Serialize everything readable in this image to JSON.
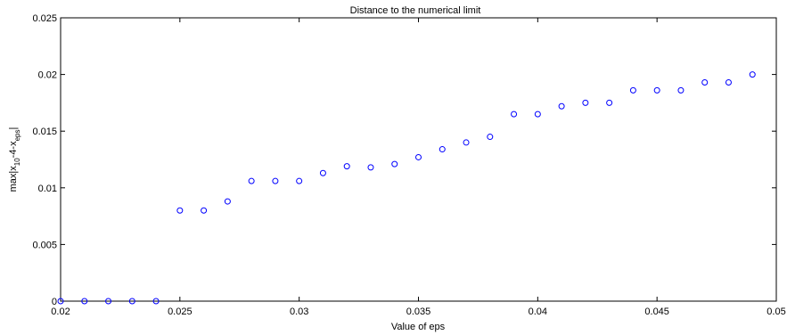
{
  "chart_data": {
    "type": "scatter",
    "title": "Distance to the numerical limit",
    "xlabel": "Value of eps",
    "ylabel": {
      "prefix": "max|x",
      "sub1": "10",
      "mid": "-4",
      "sep": "-x",
      "sub2": "eps",
      "suffix": "|"
    },
    "xlim": [
      0.02,
      0.05
    ],
    "ylim": [
      0,
      0.025
    ],
    "xticks": [
      0.02,
      0.025,
      0.03,
      0.035,
      0.04,
      0.045,
      0.05
    ],
    "xtick_labels": [
      "0.02",
      "0.025",
      "0.03",
      "0.035",
      "0.04",
      "0.045",
      "0.05"
    ],
    "yticks": [
      0,
      0.005,
      0.01,
      0.015,
      0.02,
      0.025
    ],
    "ytick_labels": [
      "0",
      "0.005",
      "0.01",
      "0.015",
      "0.02",
      "0.025"
    ],
    "grid": false,
    "marker_color": "#0000ff",
    "marker": "circle-open",
    "x": [
      0.02,
      0.021,
      0.022,
      0.023,
      0.024,
      0.025,
      0.026,
      0.027,
      0.028,
      0.029,
      0.03,
      0.031,
      0.032,
      0.033,
      0.034,
      0.035,
      0.036,
      0.037,
      0.038,
      0.039,
      0.04,
      0.041,
      0.042,
      0.043,
      0.044,
      0.045,
      0.046,
      0.047,
      0.048,
      0.049
    ],
    "y": [
      0.0,
      0.0,
      0.0,
      0.0,
      0.0,
      0.008,
      0.008,
      0.0088,
      0.0106,
      0.0106,
      0.0106,
      0.0113,
      0.0119,
      0.0118,
      0.0121,
      0.0127,
      0.0134,
      0.014,
      0.0145,
      0.0165,
      0.0165,
      0.0172,
      0.0175,
      0.0175,
      0.0186,
      0.0186,
      0.0186,
      0.0193,
      0.0193,
      0.02
    ]
  }
}
